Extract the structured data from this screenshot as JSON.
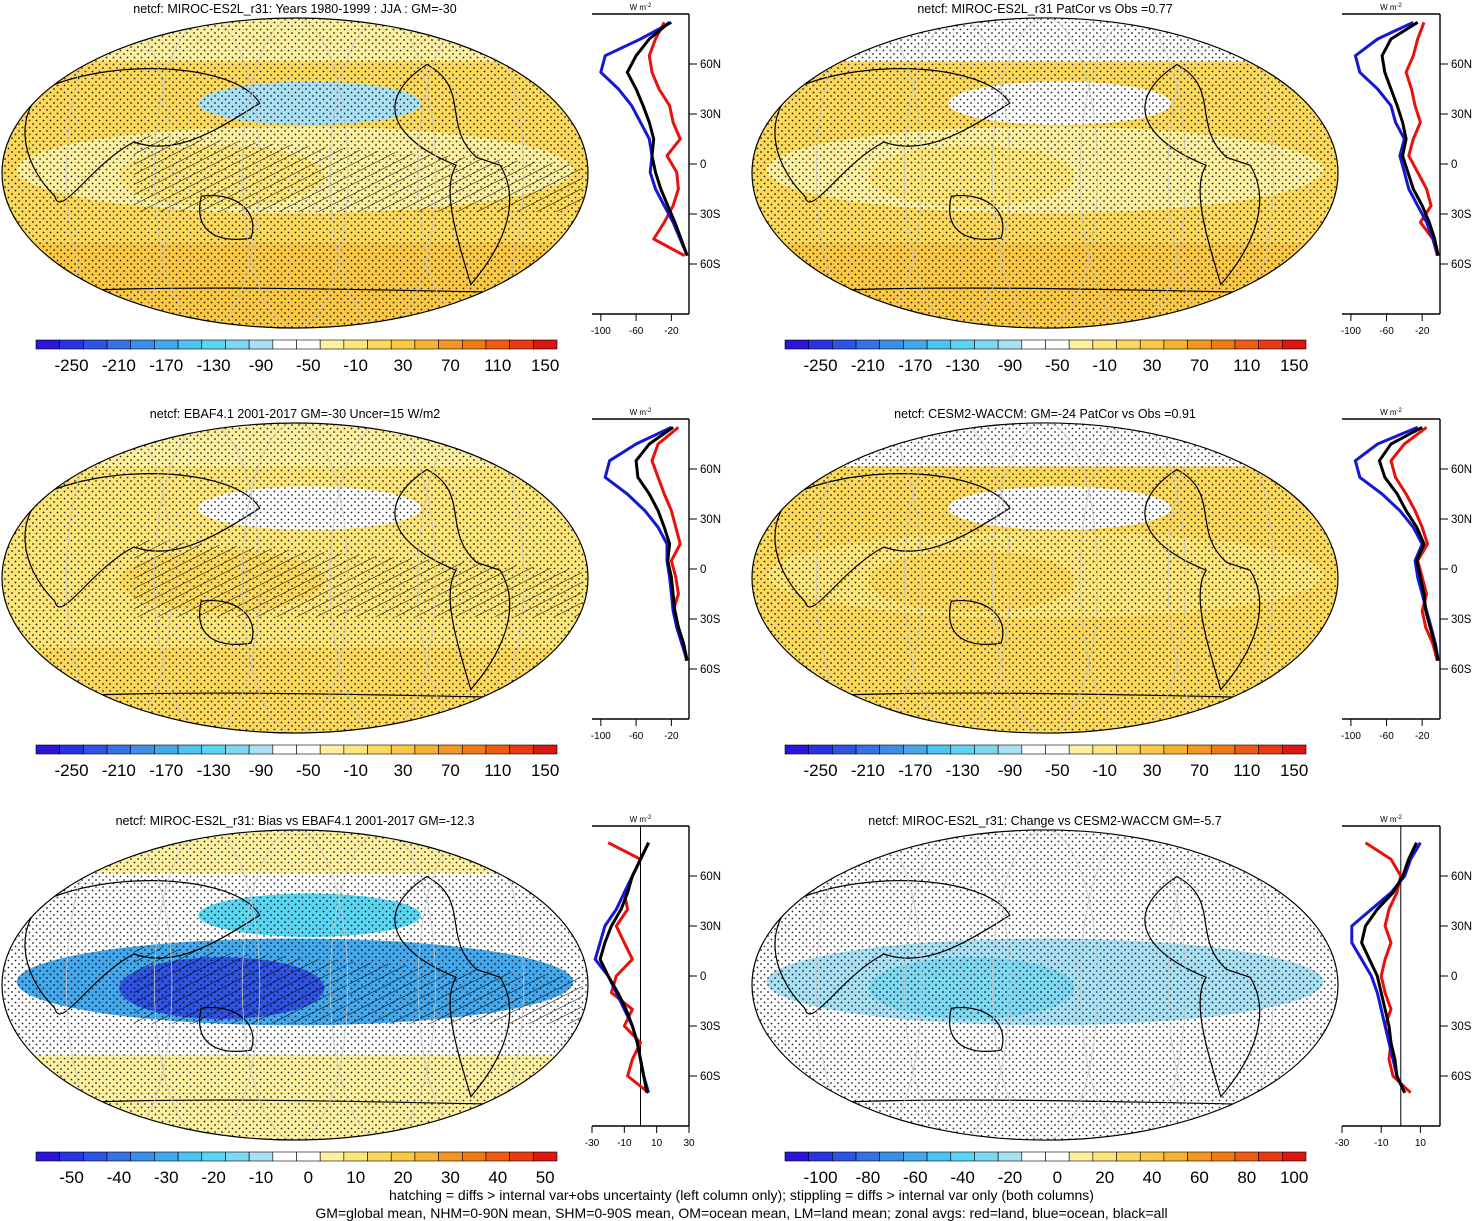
{
  "chart_data": [
    {
      "type": "heatmap",
      "title": "netcf: MIROC-ES2L_r31: Years 1980-1999 : JJA : GM=-30",
      "colorbar": {
        "labels": [
          "-250",
          "-210",
          "-170",
          "-130",
          "-90",
          "-50",
          "-10",
          "30",
          "70",
          "110",
          "150"
        ],
        "n_bins": 22
      },
      "field": {
        "tropics": -10,
        "tropical_west": 10,
        "midlat": 20,
        "southern_ocean": 45,
        "north_pacific": -80,
        "north_cap": -20
      },
      "overlays": {
        "hatch_tropics": true
      },
      "profile": {
        "ylabels": [
          "60N",
          "30N",
          "0",
          "30S",
          "60S"
        ],
        "xlabels": [
          "-100",
          "-60",
          "-20"
        ],
        "xlim": [
          -110,
          0
        ],
        "xunit_base": "W m",
        "xunit_exp": "-2",
        "series": [
          {
            "name": "land",
            "color": "#e8120d",
            "lat": [
              85,
              75,
              65,
              55,
              45,
              35,
              25,
              15,
              5,
              -5,
              -15,
              -25,
              -35,
              -45,
              -55
            ],
            "values": [
              -28,
              -38,
              -45,
              -42,
              -34,
              -22,
              -18,
              -10,
              -25,
              -14,
              -12,
              -18,
              -28,
              -40,
              -5
            ]
          },
          {
            "name": "ocean",
            "color": "#1418d6",
            "lat": [
              85,
              75,
              65,
              55,
              45,
              35,
              25,
              15,
              5,
              -5,
              -15,
              -25,
              -35,
              -45,
              -55
            ],
            "values": [
              -20,
              -55,
              -95,
              -100,
              -80,
              -65,
              -55,
              -45,
              -42,
              -44,
              -38,
              -28,
              -18,
              -10,
              -2
            ]
          },
          {
            "name": "all",
            "color": "#000000",
            "lat": [
              85,
              75,
              65,
              55,
              45,
              35,
              25,
              15,
              5,
              -5,
              -15,
              -25,
              -35,
              -45,
              -55
            ],
            "values": [
              -22,
              -45,
              -60,
              -70,
              -60,
              -52,
              -45,
              -40,
              -42,
              -38,
              -32,
              -24,
              -16,
              -9,
              -2
            ]
          }
        ]
      }
    },
    {
      "type": "heatmap",
      "title": "netcf: MIROC-ES2L_r31 PatCor vs Obs =0.77",
      "colorbar": {
        "labels": [
          "-250",
          "-210",
          "-170",
          "-130",
          "-90",
          "-50",
          "-10",
          "30",
          "70",
          "110",
          "150"
        ],
        "n_bins": 22
      },
      "field": {
        "tropics": -15,
        "tropical_west": 5,
        "midlat": 20,
        "southern_ocean": 40,
        "north_pacific": -70,
        "north_cap": -30
      },
      "overlays": {
        "hatch_tropics": false
      },
      "profile": {
        "ylabels": [
          "60N",
          "30N",
          "0",
          "30S",
          "60S"
        ],
        "xlabels": [
          "-100",
          "-60",
          "-20"
        ],
        "xlim": [
          -110,
          0
        ],
        "xunit_base": "W m",
        "xunit_exp": "-2",
        "series": [
          {
            "name": "land",
            "color": "#e8120d",
            "lat": [
              85,
              75,
              65,
              55,
              45,
              35,
              25,
              15,
              5,
              -5,
              -15,
              -25,
              -35,
              -45,
              -55
            ],
            "values": [
              -18,
              -25,
              -30,
              -38,
              -32,
              -28,
              -22,
              -30,
              -35,
              -25,
              -15,
              -10,
              -22,
              -8,
              -3
            ]
          },
          {
            "name": "ocean",
            "color": "#1418d6",
            "lat": [
              85,
              75,
              65,
              55,
              45,
              35,
              25,
              15,
              5,
              -5,
              -15,
              -25,
              -35,
              -45,
              -55
            ],
            "values": [
              -30,
              -70,
              -95,
              -90,
              -70,
              -55,
              -50,
              -40,
              -45,
              -40,
              -35,
              -25,
              -15,
              -8,
              -2
            ]
          },
          {
            "name": "all",
            "color": "#000000",
            "lat": [
              85,
              75,
              65,
              55,
              45,
              35,
              25,
              15,
              5,
              -5,
              -15,
              -25,
              -35,
              -45,
              -55
            ],
            "values": [
              -25,
              -55,
              -65,
              -62,
              -55,
              -48,
              -42,
              -38,
              -42,
              -36,
              -30,
              -20,
              -12,
              -6,
              -2
            ]
          }
        ]
      }
    },
    {
      "type": "heatmap",
      "title": "netcf: EBAF4.1 2001-2017 GM=-30 Uncer=15 W/m2",
      "colorbar": {
        "labels": [
          "-250",
          "-210",
          "-170",
          "-130",
          "-90",
          "-50",
          "-10",
          "30",
          "70",
          "110",
          "150"
        ],
        "n_bins": 22
      },
      "field": {
        "tropics": 15,
        "tropical_west": 25,
        "midlat": 15,
        "southern_ocean": 35,
        "north_pacific": -60,
        "north_cap": -25
      },
      "overlays": {
        "hatch_tropics": true
      },
      "profile": {
        "ylabels": [
          "60N",
          "30N",
          "0",
          "30S",
          "60S"
        ],
        "xlabels": [
          "-100",
          "-60",
          "-20"
        ],
        "xlim": [
          -110,
          0
        ],
        "xunit_base": "W m",
        "xunit_exp": "-2",
        "series": [
          {
            "name": "land",
            "color": "#e8120d",
            "lat": [
              85,
              75,
              65,
              55,
              45,
              35,
              25,
              15,
              5,
              -5,
              -15,
              -25,
              -35,
              -45,
              -55
            ],
            "values": [
              -12,
              -35,
              -42,
              -35,
              -28,
              -20,
              -15,
              -10,
              -20,
              -15,
              -12,
              -18,
              -12,
              -6,
              -3
            ]
          },
          {
            "name": "ocean",
            "color": "#1418d6",
            "lat": [
              85,
              75,
              65,
              55,
              45,
              35,
              25,
              15,
              5,
              -5,
              -15,
              -25,
              -35,
              -45,
              -55
            ],
            "values": [
              -20,
              -60,
              -90,
              -95,
              -70,
              -50,
              -35,
              -25,
              -25,
              -22,
              -20,
              -18,
              -14,
              -8,
              -2
            ]
          },
          {
            "name": "all",
            "color": "#000000",
            "lat": [
              85,
              75,
              65,
              55,
              45,
              35,
              25,
              15,
              5,
              -5,
              -15,
              -25,
              -35,
              -45,
              -55
            ],
            "values": [
              -18,
              -45,
              -60,
              -58,
              -45,
              -35,
              -28,
              -22,
              -24,
              -20,
              -18,
              -16,
              -12,
              -6,
              -2
            ]
          }
        ]
      }
    },
    {
      "type": "heatmap",
      "title": "netcf: CESM2-WACCM: GM=-24 PatCor vs Obs =0.91",
      "colorbar": {
        "labels": [
          "-250",
          "-210",
          "-170",
          "-130",
          "-90",
          "-50",
          "-10",
          "30",
          "70",
          "110",
          "150"
        ],
        "n_bins": 22
      },
      "field": {
        "tropics": 10,
        "tropical_west": 20,
        "midlat": 20,
        "southern_ocean": 30,
        "north_pacific": -70,
        "north_cap": -30
      },
      "overlays": {
        "hatch_tropics": false
      },
      "profile": {
        "ylabels": [
          "60N",
          "30N",
          "0",
          "30S",
          "60S"
        ],
        "xlabels": [
          "-100",
          "-60",
          "-20"
        ],
        "xlim": [
          -110,
          0
        ],
        "xunit_base": "W m",
        "xunit_exp": "-2",
        "series": [
          {
            "name": "land",
            "color": "#e8120d",
            "lat": [
              85,
              75,
              65,
              55,
              45,
              35,
              25,
              15,
              5,
              -5,
              -15,
              -25,
              -35,
              -45,
              -55
            ],
            "values": [
              -15,
              -40,
              -55,
              -50,
              -38,
              -28,
              -20,
              -14,
              -25,
              -20,
              -15,
              -20,
              -16,
              -8,
              -3
            ]
          },
          {
            "name": "ocean",
            "color": "#1418d6",
            "lat": [
              85,
              75,
              65,
              55,
              45,
              35,
              25,
              15,
              5,
              -5,
              -15,
              -25,
              -35,
              -45,
              -55
            ],
            "values": [
              -25,
              -70,
              -95,
              -90,
              -65,
              -45,
              -30,
              -20,
              -28,
              -25,
              -20,
              -15,
              -10,
              -5,
              -2
            ]
          },
          {
            "name": "all",
            "color": "#000000",
            "lat": [
              85,
              75,
              65,
              55,
              45,
              35,
              25,
              15,
              5,
              -5,
              -15,
              -25,
              -35,
              -45,
              -55
            ],
            "values": [
              -20,
              -55,
              -68,
              -62,
              -48,
              -38,
              -26,
              -18,
              -26,
              -22,
              -18,
              -16,
              -11,
              -6,
              -2
            ]
          }
        ]
      }
    },
    {
      "type": "heatmap",
      "title": "netcf: MIROC-ES2L_r31: Bias vs EBAF4.1 2001-2017 GM=-12.3",
      "colorbar": {
        "labels": [
          "-50",
          "-40",
          "-30",
          "-20",
          "-10",
          "0",
          "10",
          "20",
          "30",
          "40",
          "50"
        ],
        "n_bins": 22
      },
      "field": {
        "tropics": -30,
        "tropical_west": -45,
        "midlat": 5,
        "southern_ocean": 10,
        "north_pacific": -20,
        "north_cap": 10
      },
      "overlays": {
        "hatch_tropics": true
      },
      "profile": {
        "ylabels": [
          "60N",
          "30N",
          "0",
          "30S",
          "60S"
        ],
        "xlabels": [
          "-30",
          "-10",
          "10",
          "30"
        ],
        "xlim": [
          -30,
          30
        ],
        "xunit_base": "W m",
        "xunit_exp": "-2",
        "zero_line": 0,
        "series": [
          {
            "name": "land",
            "color": "#e8120d",
            "lat": [
              80,
              70,
              60,
              50,
              40,
              30,
              20,
              10,
              0,
              -10,
              -20,
              -30,
              -40,
              -50,
              -60,
              -70
            ],
            "values": [
              -20,
              0,
              -5,
              -10,
              -8,
              -15,
              -10,
              -5,
              -15,
              -18,
              -5,
              -10,
              0,
              -5,
              -8,
              5
            ]
          },
          {
            "name": "ocean",
            "color": "#1418d6",
            "lat": [
              80,
              70,
              60,
              50,
              40,
              30,
              20,
              10,
              0,
              -10,
              -20,
              -30,
              -40,
              -50,
              -60,
              -70
            ],
            "values": [
              5,
              0,
              -5,
              -10,
              -15,
              -22,
              -25,
              -28,
              -20,
              -15,
              -10,
              -5,
              -2,
              0,
              2,
              5
            ]
          },
          {
            "name": "all",
            "color": "#000000",
            "lat": [
              80,
              70,
              60,
              50,
              40,
              30,
              20,
              10,
              0,
              -10,
              -20,
              -30,
              -40,
              -50,
              -60,
              -70
            ],
            "values": [
              5,
              0,
              -5,
              -8,
              -12,
              -18,
              -22,
              -25,
              -20,
              -14,
              -9,
              -5,
              -2,
              0,
              2,
              4
            ]
          }
        ]
      }
    },
    {
      "type": "heatmap",
      "title": "netcf: MIROC-ES2L_r31: Change vs CESM2-WACCM GM=-5.7",
      "colorbar": {
        "labels": [
          "-100",
          "-80",
          "-60",
          "-40",
          "-20",
          "0",
          "20",
          "40",
          "60",
          "80",
          "100"
        ],
        "n_bins": 22
      },
      "field": {
        "tropics": -15,
        "tropical_west": -25,
        "midlat": 5,
        "southern_ocean": 5,
        "north_pacific": -10,
        "north_cap": 10
      },
      "overlays": {
        "hatch_tropics": false
      },
      "profile": {
        "ylabels": [
          "60N",
          "30N",
          "0",
          "30S",
          "60S"
        ],
        "xlabels": [
          "-30",
          "-10",
          "10"
        ],
        "xlim": [
          -30,
          20
        ],
        "xunit_base": "W m",
        "xunit_exp": "-2",
        "zero_line": 0,
        "series": [
          {
            "name": "land",
            "color": "#e8120d",
            "lat": [
              80,
              70,
              60,
              50,
              40,
              30,
              20,
              10,
              0,
              -10,
              -20,
              -30,
              -40,
              -50,
              -60,
              -70
            ],
            "values": [
              -18,
              -5,
              0,
              -2,
              -6,
              -8,
              -5,
              -8,
              -10,
              -8,
              -5,
              -8,
              -5,
              -6,
              -4,
              5
            ]
          },
          {
            "name": "ocean",
            "color": "#1418d6",
            "lat": [
              80,
              70,
              60,
              50,
              40,
              30,
              20,
              10,
              0,
              -10,
              -20,
              -30,
              -40,
              -50,
              -60,
              -70
            ],
            "values": [
              10,
              5,
              2,
              -5,
              -15,
              -25,
              -25,
              -20,
              -15,
              -12,
              -10,
              -8,
              -6,
              -4,
              -2,
              2
            ]
          },
          {
            "name": "all",
            "color": "#000000",
            "lat": [
              80,
              70,
              60,
              50,
              40,
              30,
              20,
              10,
              0,
              -10,
              -20,
              -30,
              -40,
              -50,
              -60,
              -70
            ],
            "values": [
              8,
              4,
              1,
              -4,
              -12,
              -18,
              -20,
              -16,
              -12,
              -10,
              -8,
              -6,
              -5,
              -3,
              -2,
              2
            ]
          }
        ]
      }
    }
  ],
  "footer": {
    "line1": "hatching = diffs > internal var+obs uncertainty (left column only); stippling = diffs > internal var only (both columns)",
    "line2": "GM=global mean, NHM=0-90N mean, SHM=0-90S mean, OM=ocean mean, LM=land mean; zonal avgs: red=land, blue=ocean, black=all"
  },
  "colors": {
    "scale": [
      "#2a15d9",
      "#2a33e0",
      "#2f53e3",
      "#3671e6",
      "#3c8ee8",
      "#44a8ec",
      "#4ec2f0",
      "#5ad6f3",
      "#7fd8f2",
      "#a9e0f3",
      "#ffffff",
      "#ffffff",
      "#fdf0a0",
      "#fde57a",
      "#fcd95c",
      "#fbc845",
      "#f8b232",
      "#f49722",
      "#f17a17",
      "#ee5b13",
      "#e83b12",
      "#d91812"
    ],
    "land_outline": "#000000",
    "grid": "#c8c8c8"
  }
}
